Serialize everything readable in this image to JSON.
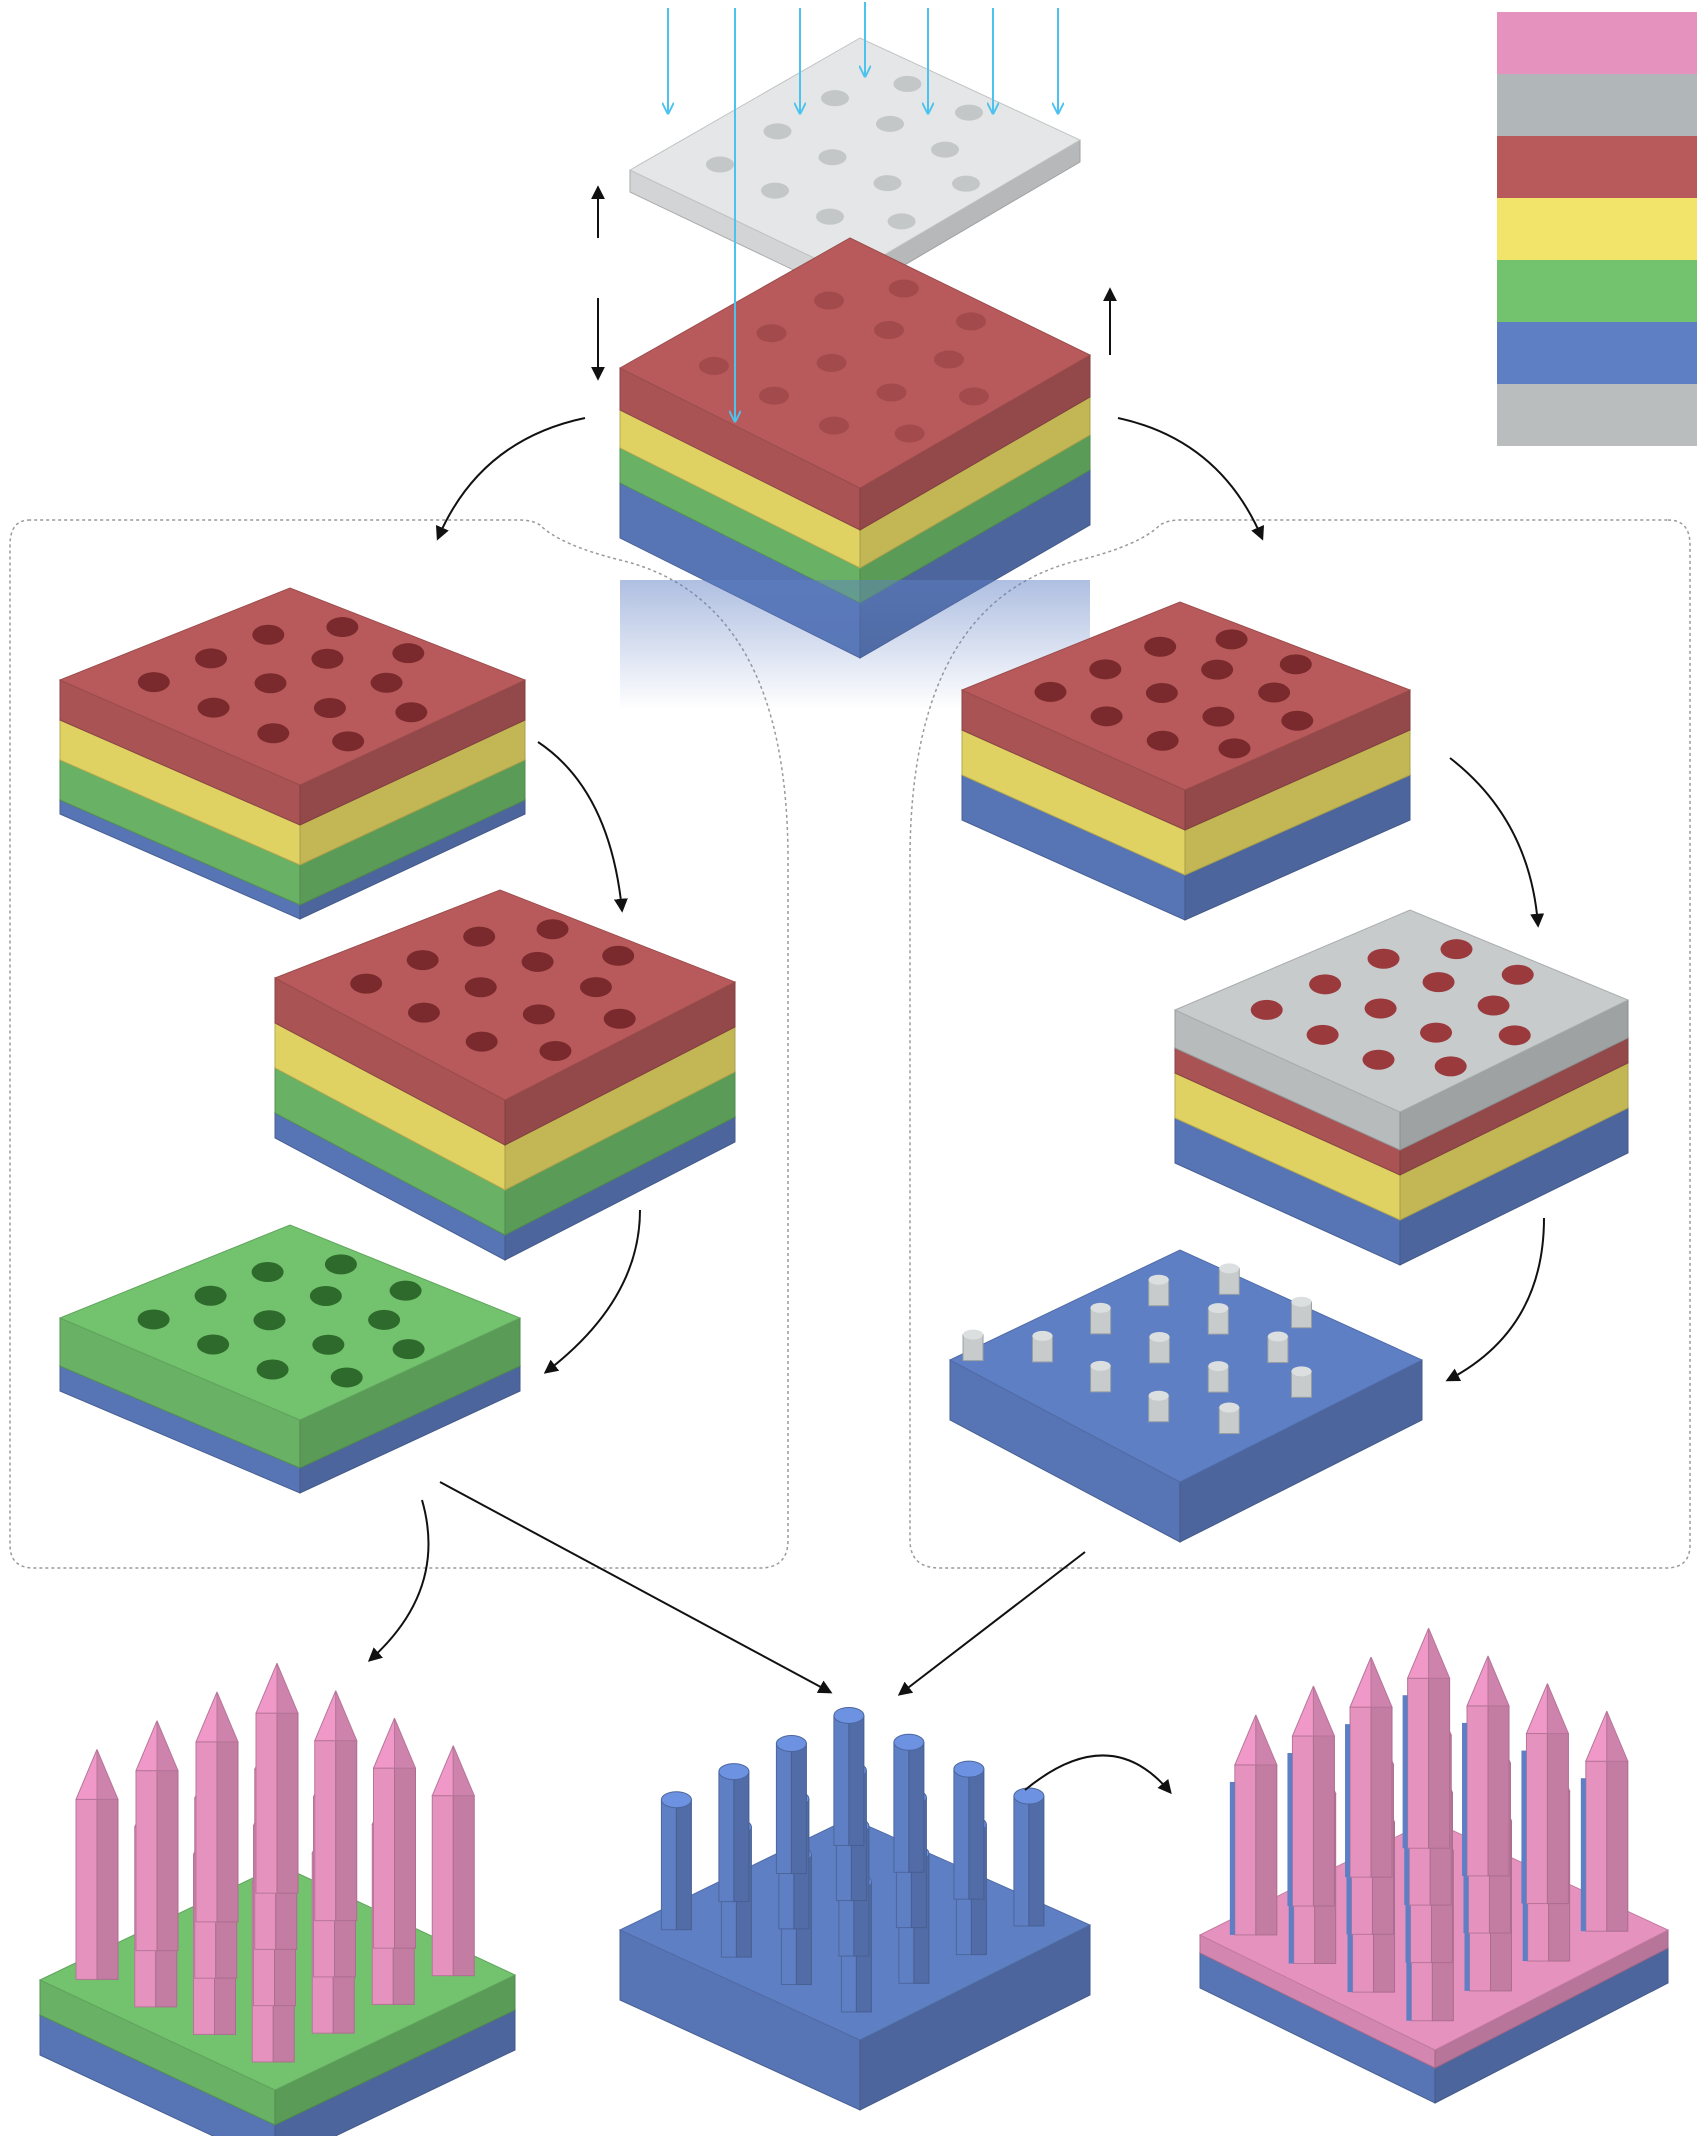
{
  "legend": {
    "swatches": [
      {
        "key": "pink",
        "color": "#e592bf"
      },
      {
        "key": "grey-a",
        "color": "#b1b7b8"
      },
      {
        "key": "red",
        "color": "#b85a5b"
      },
      {
        "key": "yellow",
        "color": "#f2e36a"
      },
      {
        "key": "green",
        "color": "#72c26e"
      },
      {
        "key": "blue",
        "color": "#5f7fc4"
      },
      {
        "key": "grey-b",
        "color": "#b9bdbe"
      }
    ]
  },
  "colors": {
    "pink": "#e592bf",
    "pink_dark": "#c9709f",
    "red": "#b85a5b",
    "red_dark": "#8e3a3c",
    "yellow": "#f2e36a",
    "yellow_dark": "#d8c640",
    "green": "#72c26e",
    "green_dark": "#4e9b4b",
    "blue": "#5f7fc4",
    "blue_dark": "#3f5ea6",
    "grey": "#c7cbcc",
    "grey_dark": "#9aa0a2",
    "mask": "#e4e6e7",
    "light_arrow": "#4cc3ee",
    "frame": "#9a9a9a"
  },
  "icons": {
    "arrow": "curved-arrow-icon",
    "light": "light-ray-icon"
  }
}
